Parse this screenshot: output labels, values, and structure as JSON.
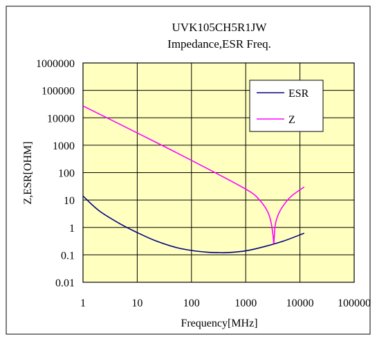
{
  "chart_data": {
    "type": "line",
    "title": "UVK105CH5R1JW",
    "subtitle": "Impedance,ESR Freq.",
    "xlabel": "Frequency[MHz]",
    "ylabel": "Z,ESR[OHM]",
    "x_scale": "log",
    "y_scale": "log",
    "xlim": [
      1,
      100000
    ],
    "ylim": [
      0.01,
      1000000
    ],
    "x_ticks": [
      "1",
      "10",
      "100",
      "1000",
      "10000",
      "100000"
    ],
    "y_ticks": [
      "0.01",
      "0.1",
      "1",
      "10",
      "100",
      "1000",
      "10000",
      "100000",
      "1000000"
    ],
    "grid": true,
    "legend_position": "top-right",
    "colors": {
      "plot_background": "#ffffc0",
      "grid": "#000000",
      "outer_border": "#000000"
    },
    "series": [
      {
        "name": "ESR",
        "color": "#000080",
        "x": [
          1,
          2,
          5,
          10,
          20,
          50,
          100,
          200,
          350,
          500,
          1000,
          2000,
          5000,
          12000
        ],
        "y": [
          14,
          4,
          1.3,
          0.65,
          0.35,
          0.19,
          0.145,
          0.125,
          0.12,
          0.122,
          0.14,
          0.19,
          0.32,
          0.62
        ]
      },
      {
        "name": "Z",
        "color": "#ff00ff",
        "x": [
          1,
          10,
          100,
          1000,
          1800,
          2500,
          2900,
          3200,
          3300,
          3500,
          4000,
          5000,
          7000,
          12000
        ],
        "y": [
          27000,
          2800,
          280,
          25,
          10,
          4,
          1.7,
          0.5,
          0.27,
          1.2,
          3,
          6.5,
          14,
          30
        ]
      }
    ]
  }
}
